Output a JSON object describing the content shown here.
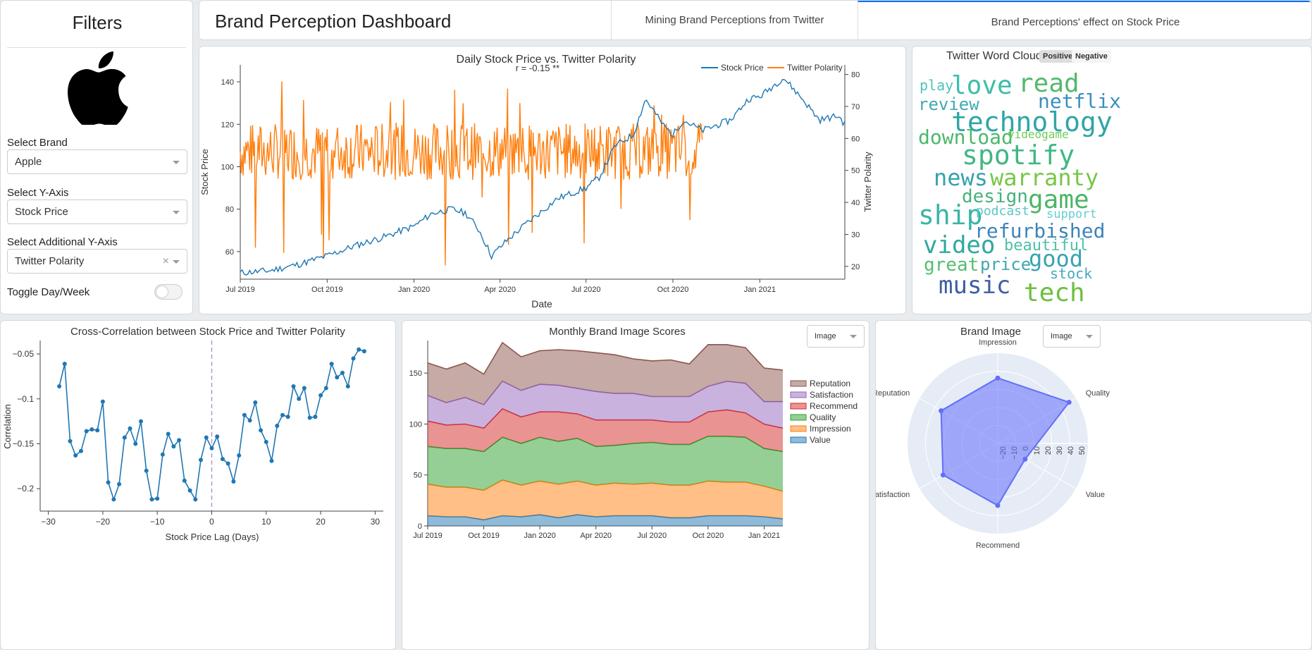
{
  "header": {
    "title": "Brand Perception Dashboard",
    "tabs": [
      {
        "label": "Mining Brand Perceptions from Twitter",
        "active": false
      },
      {
        "label": "Brand Perceptions' effect on Stock Price",
        "active": true
      }
    ]
  },
  "filters": {
    "title": "Filters",
    "logo": "apple-logo",
    "brand_label": "Select Brand",
    "brand_value": "Apple",
    "yaxis_label": "Select Y-Axis",
    "yaxis_value": "Stock Price",
    "addl_label": "Select Additional Y-Axis",
    "addl_value": "Twitter Polarity",
    "clear_glyph": "×",
    "toggle_label": "Toggle Day/Week",
    "toggle_on": false
  },
  "colors": {
    "blue": "#1f77b4",
    "orange": "#ff7f0e",
    "accent": "#0d6efd"
  },
  "wordcloud": {
    "title": "Twitter Word Cloud",
    "positive_label": "Positive",
    "negative_label": "Negative",
    "words": [
      "play",
      "love",
      "read",
      "review",
      "netflix",
      "technology",
      "download",
      "videogame",
      "spotify",
      "news",
      "warranty",
      "design",
      "game",
      "ship",
      "podcast",
      "support",
      "refurbished",
      "video",
      "beautiful",
      "great",
      "price",
      "good",
      "stock",
      "music",
      "tech"
    ]
  },
  "chart_data": [
    {
      "type": "line",
      "title": "Daily Stock Price vs. Twitter Polarity",
      "annotation": "r = -0.15 **",
      "xlabel": "Date",
      "ylabel": "Stock Price",
      "y2label": "Twitter Polarity",
      "x_ticks": [
        "Jul 2019",
        "Oct 2019",
        "Jan 2020",
        "Apr 2020",
        "Jul 2020",
        "Oct 2020",
        "Jan 2021"
      ],
      "y_ticks": [
        60,
        80,
        100,
        120,
        140
      ],
      "y2_ticks": [
        20,
        30,
        40,
        50,
        60,
        70,
        80
      ],
      "ylim": [
        47,
        148
      ],
      "y2lim": [
        16,
        83
      ],
      "legend": "top-right",
      "series": [
        {
          "name": "Stock Price",
          "axis": "y",
          "color": "#1f77b4",
          "dates": [
            "2019-07-01",
            "2019-08-01",
            "2019-09-01",
            "2019-10-01",
            "2019-11-01",
            "2019-12-01",
            "2020-01-01",
            "2020-01-20",
            "2020-02-10",
            "2020-02-25",
            "2020-03-10",
            "2020-03-23",
            "2020-04-10",
            "2020-05-01",
            "2020-06-01",
            "2020-07-01",
            "2020-07-15",
            "2020-08-01",
            "2020-08-20",
            "2020-09-02",
            "2020-09-20",
            "2020-10-01",
            "2020-10-12",
            "2020-11-01",
            "2020-12-01",
            "2020-12-20",
            "2021-01-01",
            "2021-01-26",
            "2021-02-15",
            "2021-03-05",
            "2021-03-25",
            "2021-04-01"
          ],
          "values": [
            50,
            51,
            54,
            58,
            63,
            67,
            72,
            78,
            80,
            78,
            70,
            58,
            66,
            74,
            85,
            90,
            95,
            110,
            115,
            132,
            120,
            115,
            122,
            117,
            122,
            132,
            133,
            142,
            132,
            122,
            124,
            120
          ]
        },
        {
          "name": "Twitter Polarity",
          "axis": "y2",
          "color": "#ff7f0e",
          "dates": [
            "2019-07-01",
            "2019-07-15",
            "2019-08-01",
            "2019-08-15",
            "2019-09-01",
            "2019-09-15",
            "2019-10-01",
            "2019-10-15",
            "2019-11-01",
            "2019-11-15",
            "2019-12-01",
            "2019-12-15",
            "2020-01-01",
            "2020-01-15",
            "2020-02-01",
            "2020-02-15",
            "2020-03-01",
            "2020-03-15",
            "2020-04-01",
            "2020-04-15",
            "2020-05-01",
            "2020-05-15",
            "2020-06-01",
            "2020-06-15",
            "2020-07-01",
            "2020-07-15",
            "2020-08-01",
            "2020-08-15",
            "2020-09-01",
            "2020-09-15",
            "2020-10-01",
            "2020-10-15",
            "2020-11-01"
          ],
          "values": [
            52,
            78,
            50,
            62,
            55,
            58,
            52,
            56,
            57,
            54,
            60,
            50,
            58,
            55,
            52,
            62,
            55,
            48,
            56,
            54,
            60,
            50,
            52,
            56,
            58,
            48,
            52,
            35,
            54,
            58,
            52,
            60,
            48
          ]
        }
      ]
    },
    {
      "type": "line",
      "title": "Cross-Correlation between Stock Price and Twitter Polarity",
      "xlabel": "Stock Price Lag (Days)",
      "ylabel": "Correlation",
      "x_ticks": [
        -30,
        -20,
        -10,
        0,
        10,
        20,
        30
      ],
      "y_ticks": [
        -0.2,
        -0.15,
        -0.1,
        -0.05
      ],
      "x_tick_labels": [
        "−30",
        "−20",
        "−10",
        "0",
        "10",
        "20",
        "30"
      ],
      "y_tick_labels": [
        "−0.2",
        "−0.15",
        "−0.1",
        "−0.05"
      ],
      "xlim": [
        -31.5,
        31.5
      ],
      "ylim": [
        -0.225,
        -0.035
      ],
      "vline": 0,
      "x": [
        -28,
        -27,
        -26,
        -25,
        -24,
        -23,
        -22,
        -21,
        -20,
        -19,
        -18,
        -17,
        -16,
        -15,
        -14,
        -13,
        -12,
        -11,
        -10,
        -9,
        -8,
        -7,
        -6,
        -5,
        -4,
        -3,
        -2,
        -1,
        0,
        1,
        2,
        3,
        4,
        5,
        6,
        7,
        8,
        9,
        10,
        11,
        12,
        13,
        14,
        15,
        16,
        17,
        18,
        19,
        20,
        21,
        22,
        23,
        24,
        25,
        26,
        27,
        28
      ],
      "values": [
        -0.086,
        -0.061,
        -0.147,
        -0.163,
        -0.158,
        -0.136,
        -0.134,
        -0.135,
        -0.103,
        -0.193,
        -0.212,
        -0.195,
        -0.143,
        -0.133,
        -0.15,
        -0.125,
        -0.18,
        -0.212,
        -0.211,
        -0.162,
        -0.139,
        -0.153,
        -0.146,
        -0.191,
        -0.202,
        -0.212,
        -0.168,
        -0.143,
        -0.155,
        -0.142,
        -0.167,
        -0.172,
        -0.192,
        -0.163,
        -0.118,
        -0.124,
        -0.104,
        -0.135,
        -0.148,
        -0.169,
        -0.13,
        -0.118,
        -0.12,
        -0.086,
        -0.1,
        -0.088,
        -0.121,
        -0.12,
        -0.096,
        -0.088,
        -0.061,
        -0.076,
        -0.071,
        -0.086,
        -0.055,
        -0.045,
        -0.047
      ]
    },
    {
      "type": "area",
      "title": "Monthly Brand Image Scores",
      "dropdown": "Image",
      "x_ticks": [
        "Jul 2019",
        "Oct 2019",
        "Jan 2020",
        "Apr 2020",
        "Jul 2020",
        "Oct 2020",
        "Jan 2021"
      ],
      "y_ticks": [
        0,
        50,
        100,
        150
      ],
      "ylim": [
        0,
        182
      ],
      "legend": "right",
      "categories": [
        "2019-07",
        "2019-08",
        "2019-09",
        "2019-10",
        "2019-11",
        "2019-12",
        "2020-01",
        "2020-02",
        "2020-03",
        "2020-04",
        "2020-05",
        "2020-06",
        "2020-07",
        "2020-08",
        "2020-09",
        "2020-10",
        "2020-11",
        "2020-12",
        "2021-01",
        "2021-02"
      ],
      "series": [
        {
          "name": "Value",
          "color": "#1f77b4",
          "values": [
            10,
            9,
            9,
            6,
            10,
            9,
            11,
            8,
            11,
            9,
            10,
            10,
            10,
            8,
            8,
            10,
            10,
            10,
            9,
            7
          ]
        },
        {
          "name": "Impression",
          "color": "#ff7f0e",
          "values": [
            31,
            29,
            29,
            29,
            35,
            31,
            33,
            33,
            33,
            31,
            32,
            31,
            32,
            32,
            32,
            34,
            33,
            33,
            30,
            27
          ]
        },
        {
          "name": "Quality",
          "color": "#2ca02c",
          "values": [
            37,
            38,
            38,
            38,
            42,
            41,
            43,
            42,
            42,
            38,
            37,
            40,
            40,
            40,
            40,
            44,
            45,
            44,
            37,
            39
          ]
        },
        {
          "name": "Recommend",
          "color": "#d62728",
          "values": [
            25,
            23,
            24,
            23,
            28,
            26,
            25,
            29,
            24,
            26,
            25,
            23,
            22,
            22,
            22,
            24,
            26,
            24,
            24,
            23
          ]
        },
        {
          "name": "Satisfaction",
          "color": "#9467bd",
          "values": [
            25,
            22,
            26,
            23,
            27,
            26,
            27,
            26,
            25,
            28,
            26,
            26,
            23,
            25,
            25,
            25,
            28,
            29,
            22,
            26
          ]
        },
        {
          "name": "Reputation",
          "color": "#8c564b",
          "values": [
            32,
            33,
            34,
            30,
            38,
            33,
            33,
            35,
            37,
            38,
            38,
            34,
            35,
            36,
            32,
            41,
            36,
            35,
            33,
            31
          ]
        }
      ]
    },
    {
      "type": "radar",
      "title": "Brand Image",
      "dropdown": "Image",
      "categories": [
        "Impression",
        "Quality",
        "Value",
        "Recommend",
        "Satisfaction",
        "Reputation"
      ],
      "values": [
        33,
        48,
        3,
        30,
        31,
        33
      ],
      "rlim": [
        -25,
        55
      ],
      "r_ticks": [
        -20,
        -10,
        0,
        10,
        20,
        30,
        40,
        50
      ],
      "r_tick_labels": [
        "−20",
        "−10",
        "0",
        "10",
        "20",
        "30",
        "40",
        "50"
      ]
    }
  ]
}
